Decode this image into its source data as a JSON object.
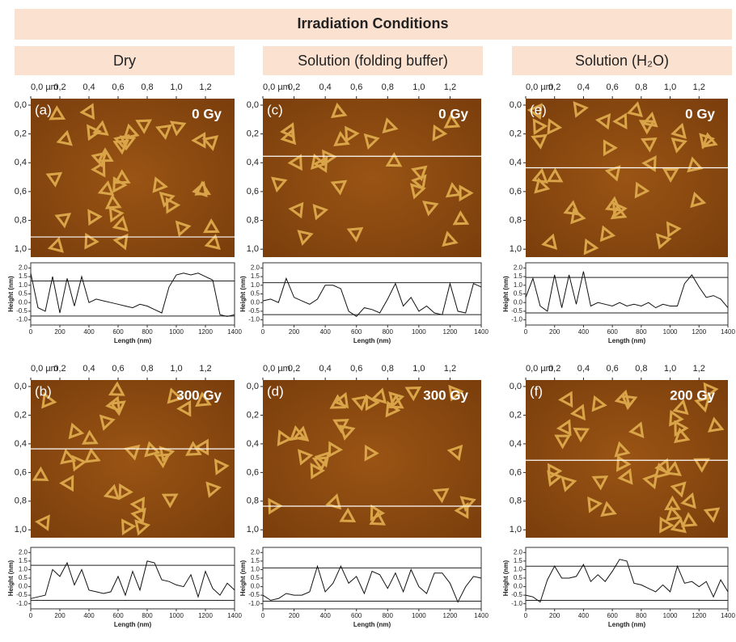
{
  "header": {
    "title": "Irradiation Conditions"
  },
  "columns": [
    "Dry",
    "Solution (folding buffer)",
    "Solution (H₂O)"
  ],
  "panels": [
    {
      "label": "(a)",
      "dose": "0 Gy",
      "image": {
        "xlim": [
          0,
          1.4
        ],
        "ylim": [
          0,
          1.1
        ],
        "xticks": [
          {
            "value": 0,
            "label": "0,0 µm"
          },
          {
            "value": 0.2,
            "label": "0,2"
          },
          {
            "value": 0.4,
            "label": "0,4"
          },
          {
            "value": 0.6,
            "label": "0,6"
          },
          {
            "value": 0.8,
            "label": "0,8"
          },
          {
            "value": 1.0,
            "label": "1,0"
          },
          {
            "value": 1.2,
            "label": "1,2"
          }
        ],
        "yticks": [
          {
            "value": 0,
            "label": "0,0"
          },
          {
            "value": 0.2,
            "label": "0,2"
          },
          {
            "value": 0.4,
            "label": "0,4"
          },
          {
            "value": 0.6,
            "label": "0,6"
          },
          {
            "value": 0.8,
            "label": "0,8"
          },
          {
            "value": 1.0,
            "label": "1,0"
          }
        ],
        "scan_line": 0.96
      },
      "profile": {
        "ylabel": "Height (nm)",
        "xlabel": "Length (nm)",
        "xlim": [
          0,
          1400
        ],
        "ylim": [
          -1.3,
          2.3
        ],
        "xticks": [
          0,
          200,
          400,
          600,
          800,
          1000,
          1200,
          1400
        ],
        "yticks": [
          {
            "value": 2,
            "label": "2.0"
          },
          1.5,
          {
            "value": 1,
            "label": "1.0"
          },
          0.5,
          {
            "value": 0,
            "label": "0.0"
          },
          -0.5,
          {
            "value": -1,
            "label": "-1.0"
          }
        ],
        "markers": [
          1.25,
          -0.78
        ],
        "x": [
          0,
          50,
          100,
          150,
          200,
          250,
          300,
          350,
          400,
          450,
          500,
          550,
          600,
          650,
          700,
          750,
          800,
          850,
          900,
          950,
          1000,
          1050,
          1100,
          1150,
          1200,
          1250,
          1300,
          1350,
          1400
        ],
        "values": [
          1.7,
          -0.3,
          -0.5,
          1.5,
          -0.6,
          1.4,
          -0.2,
          1.5,
          0,
          0.2,
          0.1,
          0,
          -0.1,
          -0.2,
          -0.3,
          -0.1,
          -0.2,
          -0.4,
          -0.6,
          0.9,
          1.6,
          1.7,
          1.6,
          1.7,
          1.5,
          1.3,
          -0.7,
          -0.8,
          -0.7
        ]
      }
    },
    {
      "label": "(b)",
      "dose": "300 Gy",
      "image": {
        "xlim": [
          0,
          1.4
        ],
        "ylim": [
          0,
          1.1
        ],
        "xticks": [
          {
            "value": 0,
            "label": "0,0 µm"
          },
          {
            "value": 0.2,
            "label": "0,2"
          },
          {
            "value": 0.4,
            "label": "0,4"
          },
          {
            "value": 0.6,
            "label": "0,6"
          },
          {
            "value": 0.8,
            "label": "0,8"
          },
          {
            "value": 1.0,
            "label": "1,0"
          },
          {
            "value": 1.2,
            "label": "1,2"
          }
        ],
        "yticks": [
          {
            "value": 0,
            "label": "0,0"
          },
          {
            "value": 0.2,
            "label": "0,2"
          },
          {
            "value": 0.4,
            "label": "0,4"
          },
          {
            "value": 0.6,
            "label": "0,6"
          },
          {
            "value": 0.8,
            "label": "0,8"
          },
          {
            "value": 1.0,
            "label": "1,0"
          }
        ],
        "scan_line": 0.48
      },
      "profile": {
        "ylabel": "Height (nm)",
        "xlabel": "Length (nm)",
        "xlim": [
          0,
          1400
        ],
        "ylim": [
          -1.3,
          2.3
        ],
        "xticks": [
          0,
          200,
          400,
          600,
          800,
          1000,
          1200,
          1400
        ],
        "yticks": [
          {
            "value": 2,
            "label": "2.0"
          },
          1.5,
          {
            "value": 1,
            "label": "1.0"
          },
          0.5,
          {
            "value": 0,
            "label": "0.0"
          },
          -0.5,
          {
            "value": -1,
            "label": "-1.0"
          }
        ],
        "markers": [
          1.25,
          -0.8
        ],
        "x": [
          0,
          50,
          100,
          150,
          200,
          250,
          300,
          350,
          400,
          450,
          500,
          550,
          600,
          650,
          700,
          750,
          800,
          850,
          900,
          950,
          1000,
          1050,
          1100,
          1150,
          1200,
          1250,
          1300,
          1350,
          1400
        ],
        "values": [
          -0.7,
          -0.6,
          -0.5,
          1.0,
          0.6,
          1.4,
          0.1,
          1.0,
          -0.2,
          -0.3,
          -0.4,
          -0.3,
          0.6,
          -0.5,
          0.9,
          -0.2,
          1.5,
          1.4,
          0.4,
          0.3,
          0.1,
          0,
          0.7,
          -0.6,
          0.9,
          -0.1,
          -0.5,
          0.2,
          -0.2
        ]
      }
    },
    {
      "label": "(c)",
      "dose": "0 Gy",
      "image": {
        "xlim": [
          0,
          1.4
        ],
        "ylim": [
          0,
          1.1
        ],
        "xticks": [
          {
            "value": 0,
            "label": "0,0 µm"
          },
          {
            "value": 0.2,
            "label": "0,2"
          },
          {
            "value": 0.4,
            "label": "0,4"
          },
          {
            "value": 0.6,
            "label": "0,6"
          },
          {
            "value": 0.8,
            "label": "0,8"
          },
          {
            "value": 1.0,
            "label": "1,0"
          },
          {
            "value": 1.2,
            "label": "1,2"
          }
        ],
        "yticks": [
          {
            "value": 0,
            "label": "0,0"
          },
          {
            "value": 0.2,
            "label": "0,2"
          },
          {
            "value": 0.4,
            "label": "0,4"
          },
          {
            "value": 0.6,
            "label": "0,6"
          },
          {
            "value": 0.8,
            "label": "0,8"
          },
          {
            "value": 1.0,
            "label": "1,0"
          }
        ],
        "scan_line": 0.4
      },
      "profile": {
        "ylabel": "Height (nm)",
        "xlabel": "Length (nm)",
        "xlim": [
          0,
          1400
        ],
        "ylim": [
          -1.3,
          2.3
        ],
        "xticks": [
          0,
          200,
          400,
          600,
          800,
          1000,
          1200,
          1400
        ],
        "yticks": [
          {
            "value": 2,
            "label": "2.0"
          },
          1.5,
          {
            "value": 1,
            "label": "1.0"
          },
          0.5,
          {
            "value": 0,
            "label": "0.0"
          },
          -0.5,
          {
            "value": -1,
            "label": "-1.0"
          }
        ],
        "markers": [
          1.15,
          -0.7
        ],
        "x": [
          0,
          50,
          100,
          150,
          200,
          250,
          300,
          350,
          400,
          450,
          500,
          550,
          600,
          650,
          700,
          750,
          800,
          850,
          900,
          950,
          1000,
          1050,
          1100,
          1150,
          1200,
          1250,
          1300,
          1350,
          1400
        ],
        "values": [
          0.1,
          0.2,
          0,
          1.4,
          0.3,
          0.1,
          -0.1,
          0.2,
          1.0,
          1.0,
          0.8,
          -0.5,
          -0.8,
          -0.3,
          -0.4,
          -0.6,
          0.2,
          1.1,
          -0.2,
          0.3,
          -0.5,
          -0.2,
          -0.6,
          -0.7,
          1.1,
          -0.5,
          -0.6,
          1.1,
          0.9
        ]
      }
    },
    {
      "label": "(d)",
      "dose": "300 Gy",
      "image": {
        "xlim": [
          0,
          1.4
        ],
        "ylim": [
          0,
          1.1
        ],
        "xticks": [
          {
            "value": 0,
            "label": "0,0 µm"
          },
          {
            "value": 0.2,
            "label": "0,2"
          },
          {
            "value": 0.4,
            "label": "0,4"
          },
          {
            "value": 0.6,
            "label": "0,6"
          },
          {
            "value": 0.8,
            "label": "0,8"
          },
          {
            "value": 1.0,
            "label": "1,0"
          },
          {
            "value": 1.2,
            "label": "1,2"
          }
        ],
        "yticks": [
          {
            "value": 0,
            "label": "0,0"
          },
          {
            "value": 0.2,
            "label": "0,2"
          },
          {
            "value": 0.4,
            "label": "0,4"
          },
          {
            "value": 0.6,
            "label": "0,6"
          },
          {
            "value": 0.8,
            "label": "0,8"
          },
          {
            "value": 1.0,
            "label": "1,0"
          }
        ],
        "scan_line": 0.88
      },
      "profile": {
        "ylabel": "Height (nm)",
        "xlabel": "Length (nm)",
        "xlim": [
          0,
          1400
        ],
        "ylim": [
          -1.3,
          2.3
        ],
        "xticks": [
          0,
          200,
          400,
          600,
          800,
          1000,
          1200,
          1400
        ],
        "yticks": [
          {
            "value": 2,
            "label": "2.0"
          },
          1.5,
          {
            "value": 1,
            "label": "1.0"
          },
          0.5,
          {
            "value": 0,
            "label": "0.0"
          },
          -0.5,
          {
            "value": -1,
            "label": "-1.0"
          }
        ],
        "markers": [
          1.1,
          -0.85
        ],
        "x": [
          0,
          50,
          100,
          150,
          200,
          250,
          300,
          350,
          400,
          450,
          500,
          550,
          600,
          650,
          700,
          750,
          800,
          850,
          900,
          950,
          1000,
          1050,
          1100,
          1150,
          1200,
          1250,
          1300,
          1350,
          1400
        ],
        "values": [
          -0.5,
          -0.8,
          -0.7,
          -0.4,
          -0.5,
          -0.5,
          -0.3,
          1.2,
          -0.3,
          0.2,
          1.2,
          0.2,
          0.6,
          -0.4,
          0.9,
          0.7,
          -0.1,
          0.8,
          -0.3,
          1.0,
          0,
          -0.4,
          0.8,
          0.8,
          0.2,
          -0.9,
          0,
          0.6,
          0.5
        ]
      }
    },
    {
      "label": "(e)",
      "dose": "0 Gy",
      "image": {
        "xlim": [
          0,
          1.4
        ],
        "ylim": [
          0,
          1.1
        ],
        "xticks": [
          {
            "value": 0,
            "label": "0,0 µm"
          },
          {
            "value": 0.2,
            "label": "0,2"
          },
          {
            "value": 0.4,
            "label": "0,4"
          },
          {
            "value": 0.6,
            "label": "0,6"
          },
          {
            "value": 0.8,
            "label": "0,8"
          },
          {
            "value": 1.0,
            "label": "1,0"
          },
          {
            "value": 1.2,
            "label": "1,2"
          }
        ],
        "yticks": [
          {
            "value": 0,
            "label": "0,0"
          },
          {
            "value": 0.2,
            "label": "0,2"
          },
          {
            "value": 0.4,
            "label": "0,4"
          },
          {
            "value": 0.6,
            "label": "0,6"
          },
          {
            "value": 0.8,
            "label": "0,8"
          },
          {
            "value": 1.0,
            "label": "1,0"
          }
        ],
        "scan_line": 0.48
      },
      "profile": {
        "ylabel": "Height (nm)",
        "xlabel": "Length (nm)",
        "xlim": [
          0,
          1400
        ],
        "ylim": [
          -1.3,
          2.3
        ],
        "xticks": [
          0,
          200,
          400,
          600,
          800,
          1000,
          1200,
          1400
        ],
        "yticks": [
          {
            "value": 2,
            "label": "2.0"
          },
          1.5,
          {
            "value": 1,
            "label": "1.0"
          },
          0.5,
          {
            "value": 0,
            "label": "0.0"
          },
          -0.5,
          {
            "value": -1,
            "label": "-1.0"
          }
        ],
        "markers": [
          1.45,
          -0.6
        ],
        "x": [
          0,
          50,
          100,
          150,
          200,
          250,
          300,
          350,
          400,
          450,
          500,
          550,
          600,
          650,
          700,
          750,
          800,
          850,
          900,
          950,
          1000,
          1050,
          1100,
          1150,
          1200,
          1250,
          1300,
          1350,
          1400
        ],
        "values": [
          0.3,
          1.4,
          -0.2,
          -0.5,
          1.6,
          -0.3,
          1.6,
          -0.1,
          1.8,
          -0.2,
          0,
          -0.1,
          -0.2,
          0,
          -0.2,
          -0.1,
          -0.2,
          0,
          -0.3,
          -0.1,
          -0.2,
          -0.2,
          1.1,
          1.6,
          0.9,
          0.3,
          0.4,
          0.2,
          -0.3
        ]
      }
    },
    {
      "label": "(f)",
      "dose": "200 Gy",
      "image": {
        "xlim": [
          0,
          1.4
        ],
        "ylim": [
          0,
          1.1
        ],
        "xticks": [
          {
            "value": 0,
            "label": "0,0 µm"
          },
          {
            "value": 0.2,
            "label": "0,2"
          },
          {
            "value": 0.4,
            "label": "0,4"
          },
          {
            "value": 0.6,
            "label": "0,6"
          },
          {
            "value": 0.8,
            "label": "0,8"
          },
          {
            "value": 1.0,
            "label": "1,0"
          },
          {
            "value": 1.2,
            "label": "1,2"
          }
        ],
        "yticks": [
          {
            "value": 0,
            "label": "0,0"
          },
          {
            "value": 0.2,
            "label": "0,2"
          },
          {
            "value": 0.4,
            "label": "0,4"
          },
          {
            "value": 0.6,
            "label": "0,6"
          },
          {
            "value": 0.8,
            "label": "0,8"
          },
          {
            "value": 1.0,
            "label": "1,0"
          }
        ],
        "scan_line": 0.56
      },
      "profile": {
        "ylabel": "Height (nm)",
        "xlabel": "Length (nm)",
        "xlim": [
          0,
          1400
        ],
        "ylim": [
          -1.3,
          2.3
        ],
        "xticks": [
          0,
          200,
          400,
          600,
          800,
          1000,
          1200,
          1400
        ],
        "yticks": [
          {
            "value": 2,
            "label": "2.0"
          },
          1.5,
          {
            "value": 1,
            "label": "1.0"
          },
          0.5,
          {
            "value": 0,
            "label": "0.0"
          },
          -0.5,
          {
            "value": -1,
            "label": "-1.0"
          }
        ],
        "markers": [
          1.2,
          -0.8
        ],
        "x": [
          0,
          50,
          100,
          150,
          200,
          250,
          300,
          350,
          400,
          450,
          500,
          550,
          600,
          650,
          700,
          750,
          800,
          850,
          900,
          950,
          1000,
          1050,
          1100,
          1150,
          1200,
          1250,
          1300,
          1350,
          1400
        ],
        "values": [
          -0.5,
          -0.6,
          -0.9,
          0.4,
          1.2,
          0.5,
          0.5,
          0.6,
          1.3,
          0.3,
          0.7,
          0.3,
          0.9,
          1.6,
          1.5,
          0.2,
          0.1,
          -0.1,
          -0.3,
          0.1,
          -0.3,
          1.2,
          0.2,
          0.3,
          0,
          0.3,
          -0.6,
          0.4,
          -0.3
        ]
      }
    }
  ]
}
